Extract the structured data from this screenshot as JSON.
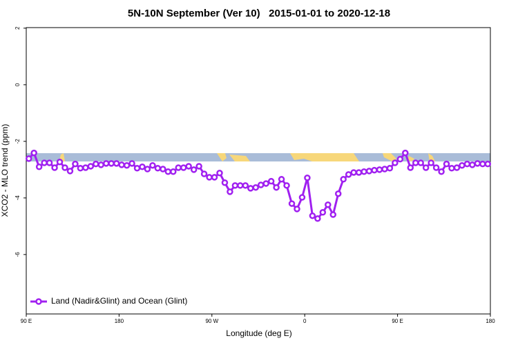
{
  "chart_data": {
    "type": "line",
    "title": "5N-10N September (Ver 10)   2015-01-01 to 2020-12-18",
    "x_label": "Longitude (deg E)",
    "y_label": "XCO2 - MLO trend (ppm)",
    "xlim": [
      90,
      540
    ],
    "ylim": [
      -8.1,
      2.02
    ],
    "xticks": [
      {
        "value": 90,
        "label": "90 E"
      },
      180,
      {
        "value": 270,
        "label": "90 W"
      },
      {
        "value": 360,
        "label": "0"
      },
      {
        "value": 450,
        "label": "90 E"
      },
      {
        "value": 540,
        "label": "180"
      }
    ],
    "yticks": [
      2,
      0,
      -2,
      -4,
      -6
    ],
    "legend": "bottom-left",
    "x": [
      92.5,
      97.5,
      102.5,
      107.5,
      112.5,
      117.5,
      122.5,
      127.5,
      132.5,
      137.5,
      142.5,
      147.5,
      152.5,
      157.5,
      162.5,
      167.5,
      172.5,
      177.5,
      182.5,
      187.5,
      192.5,
      197.5,
      202.5,
      207.5,
      212.5,
      217.5,
      222.5,
      227.5,
      232.5,
      237.5,
      242.5,
      247.5,
      252.5,
      257.5,
      262.5,
      267.5,
      272.5,
      277.5,
      282.5,
      287.5,
      292.5,
      297.5,
      302.5,
      307.5,
      312.5,
      317.5,
      322.5,
      327.5,
      332.5,
      337.5,
      342.5,
      347.5,
      352.5,
      357.5,
      362.5,
      367.5,
      372.5,
      377.5,
      382.5,
      387.5,
      392.5,
      397.5,
      402.5,
      407.5,
      412.5,
      417.5,
      422.5,
      427.5,
      432.5,
      437.5,
      442.5,
      447.5,
      452.5,
      457.5,
      462.5,
      467.5,
      472.5,
      477.5,
      482.5,
      487.5,
      492.5,
      497.5,
      502.5,
      507.5,
      512.5,
      517.5,
      522.5,
      527.5,
      532.5,
      537.5
    ],
    "series": [
      {
        "name": "Land (Nadir&Glint) and Ocean (Glint)",
        "color": "#a020f0",
        "values": [
          -2.61,
          -2.41,
          -2.9,
          -2.76,
          -2.76,
          -2.93,
          -2.73,
          -2.93,
          -3.05,
          -2.8,
          -2.95,
          -2.93,
          -2.88,
          -2.8,
          -2.83,
          -2.78,
          -2.78,
          -2.78,
          -2.83,
          -2.85,
          -2.78,
          -2.95,
          -2.9,
          -2.98,
          -2.85,
          -2.95,
          -2.98,
          -3.07,
          -3.07,
          -2.93,
          -2.93,
          -2.88,
          -3.0,
          -2.88,
          -3.15,
          -3.27,
          -3.27,
          -3.12,
          -3.46,
          -3.78,
          -3.56,
          -3.56,
          -3.56,
          -3.66,
          -3.63,
          -3.54,
          -3.49,
          -3.41,
          -3.63,
          -3.34,
          -3.56,
          -4.2,
          -4.39,
          -3.98,
          -3.29,
          -4.63,
          -4.73,
          -4.51,
          -4.24,
          -4.59,
          -3.85,
          -3.34,
          -3.17,
          -3.1,
          -3.1,
          -3.07,
          -3.05,
          -3.02,
          -3.0,
          -2.98,
          -2.95,
          -2.76,
          -2.63,
          -2.41,
          -2.93,
          -2.76,
          -2.76,
          -2.93,
          -2.76,
          -2.93,
          -3.07,
          -2.8,
          -2.95,
          -2.93,
          -2.85,
          -2.8,
          -2.83,
          -2.78,
          -2.8,
          -2.8
        ]
      }
    ]
  }
}
